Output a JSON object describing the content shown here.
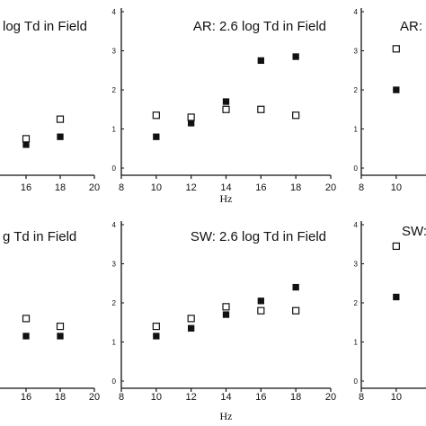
{
  "chart_data": [
    {
      "type": "scatter",
      "title": "log Td in Field",
      "xlabel": "",
      "xticks": [
        16,
        18,
        20
      ],
      "xlim": [
        8,
        20
      ],
      "ylim": [
        0,
        4
      ],
      "yticks": [],
      "series": [
        {
          "marker": "filled-square",
          "x": [
            16,
            18
          ],
          "y": [
            0.6,
            0.8
          ]
        },
        {
          "marker": "open-square",
          "x": [
            16,
            18
          ],
          "y": [
            0.75,
            1.25
          ]
        }
      ]
    },
    {
      "type": "scatter",
      "title": "AR:  2.6 log Td in Field",
      "xlabel": "Hz",
      "xticks": [
        8,
        10,
        12,
        14,
        16,
        18,
        20
      ],
      "xlim": [
        8,
        20
      ],
      "ylim": [
        0,
        4
      ],
      "yticks": [
        0,
        1,
        2,
        3,
        4
      ],
      "series": [
        {
          "marker": "filled-square",
          "x": [
            10,
            12,
            14,
            16,
            18
          ],
          "y": [
            0.8,
            1.15,
            1.7,
            2.75,
            2.85
          ]
        },
        {
          "marker": "open-square",
          "x": [
            10,
            12,
            14,
            16,
            18
          ],
          "y": [
            1.35,
            1.3,
            1.5,
            1.5,
            1.35
          ]
        }
      ]
    },
    {
      "type": "scatter",
      "title": "AR:",
      "xlabel": "",
      "xticks": [
        8,
        10
      ],
      "xlim": [
        8,
        20
      ],
      "ylim": [
        0,
        4
      ],
      "yticks": [
        0,
        1,
        2,
        3,
        4
      ],
      "series": [
        {
          "marker": "filled-square",
          "x": [
            10
          ],
          "y": [
            2.0
          ]
        },
        {
          "marker": "open-square",
          "x": [
            10
          ],
          "y": [
            3.05
          ]
        }
      ]
    },
    {
      "type": "scatter",
      "title": "g Td in Field",
      "xlabel": "",
      "xticks": [
        16,
        18,
        20
      ],
      "xlim": [
        8,
        20
      ],
      "ylim": [
        0,
        4
      ],
      "yticks": [],
      "series": [
        {
          "marker": "filled-square",
          "x": [
            16,
            18
          ],
          "y": [
            1.15,
            1.15
          ]
        },
        {
          "marker": "open-square",
          "x": [
            16,
            18
          ],
          "y": [
            1.6,
            1.4
          ]
        }
      ]
    },
    {
      "type": "scatter",
      "title": "SW:  2.6 log Td in Field",
      "xlabel": "Hz",
      "xticks": [
        8,
        10,
        12,
        14,
        16,
        18,
        20
      ],
      "xlim": [
        8,
        20
      ],
      "ylim": [
        0,
        4
      ],
      "yticks": [
        0,
        1,
        2,
        3,
        4
      ],
      "series": [
        {
          "marker": "filled-square",
          "x": [
            10,
            12,
            14,
            16,
            18
          ],
          "y": [
            1.15,
            1.35,
            1.7,
            2.05,
            2.4
          ]
        },
        {
          "marker": "open-square",
          "x": [
            10,
            12,
            14,
            16,
            18
          ],
          "y": [
            1.4,
            1.6,
            1.9,
            1.8,
            1.8
          ]
        }
      ]
    },
    {
      "type": "scatter",
      "title": "SW:",
      "xlabel": "",
      "xticks": [
        8,
        10
      ],
      "xlim": [
        8,
        20
      ],
      "ylim": [
        0,
        4
      ],
      "yticks": [
        0,
        1,
        2,
        3,
        4
      ],
      "series": [
        {
          "marker": "filled-square",
          "x": [
            10
          ],
          "y": [
            2.15
          ]
        },
        {
          "marker": "open-square",
          "x": [
            10
          ],
          "y": [
            3.45
          ]
        }
      ]
    }
  ]
}
